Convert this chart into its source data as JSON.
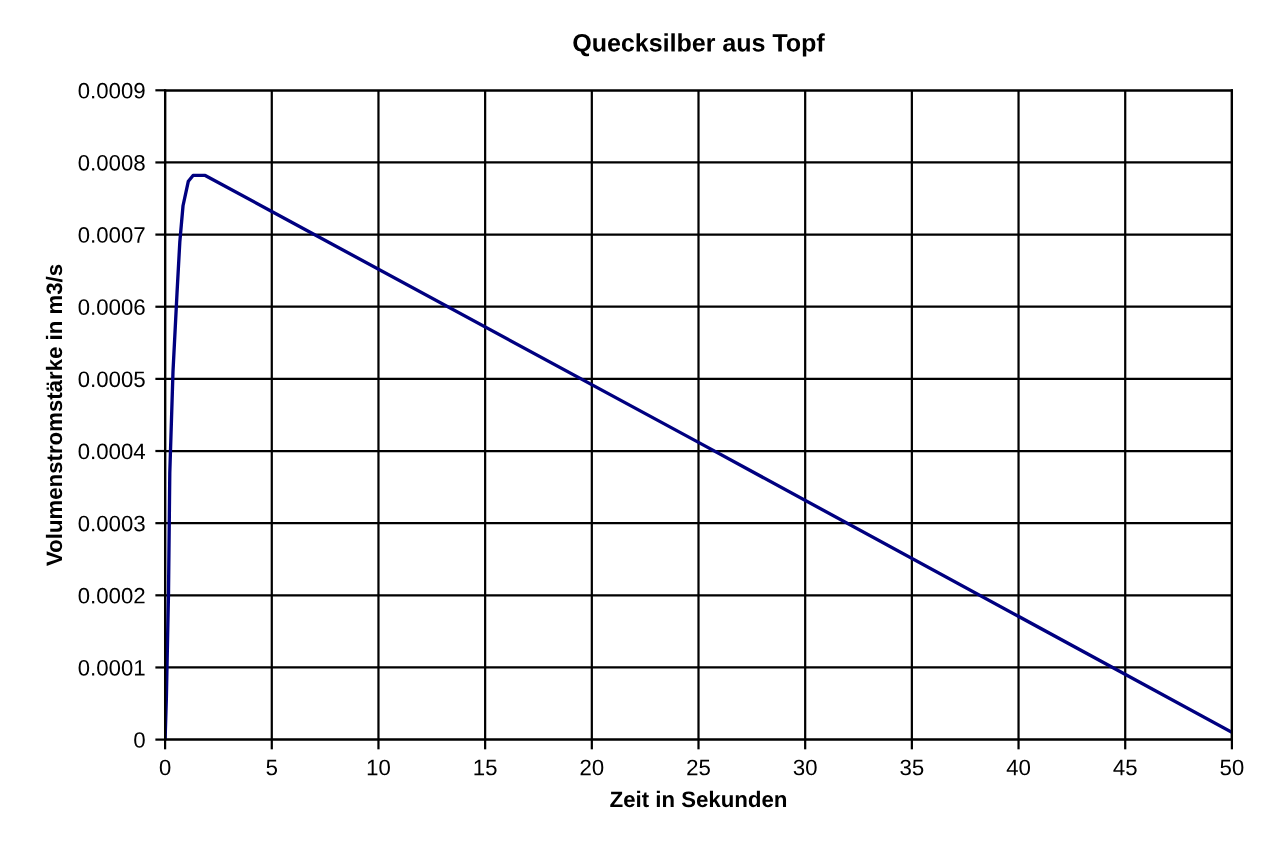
{
  "chart_data": {
    "type": "line",
    "title": "Quecksilber aus Topf",
    "xlabel": "Zeit in Sekunden",
    "ylabel": "Volumenstromstärke in m3/s",
    "x": [
      0,
      0.06,
      0.16,
      0.22,
      0.37,
      0.56,
      0.69,
      0.84,
      1.09,
      1.31,
      1.88,
      5,
      25,
      50
    ],
    "series": [
      {
        "color": "#000080",
        "values": [
          0,
          5.8e-05,
          0.000204,
          0.00037,
          0.00051,
          0.00062,
          0.00069,
          0.00074,
          0.000774,
          0.000782,
          0.000782,
          0.000732,
          0.000412,
          1e-05
        ]
      }
    ],
    "xlim": [
      0,
      50
    ],
    "xticks": [
      0,
      5,
      10,
      15,
      20,
      25,
      30,
      35,
      40,
      45,
      50
    ],
    "ylim": [
      0,
      0.0009
    ],
    "yticks": [
      {
        "value": 0,
        "label": "0"
      },
      {
        "value": 0.0001,
        "label": "0.0001"
      },
      {
        "value": 0.0002,
        "label": "0.0002"
      },
      {
        "value": 0.0003,
        "label": "0.0003"
      },
      {
        "value": 0.0004,
        "label": "0.0004"
      },
      {
        "value": 0.0005,
        "label": "0.0005"
      },
      {
        "value": 0.0006,
        "label": "0.0006"
      },
      {
        "value": 0.0007,
        "label": "0.0007"
      },
      {
        "value": 0.0008,
        "label": "0.0008"
      },
      {
        "value": 0.0009,
        "label": "0.0009"
      }
    ],
    "grid": true,
    "legend": false,
    "marker": "none",
    "line_style": "solid"
  }
}
